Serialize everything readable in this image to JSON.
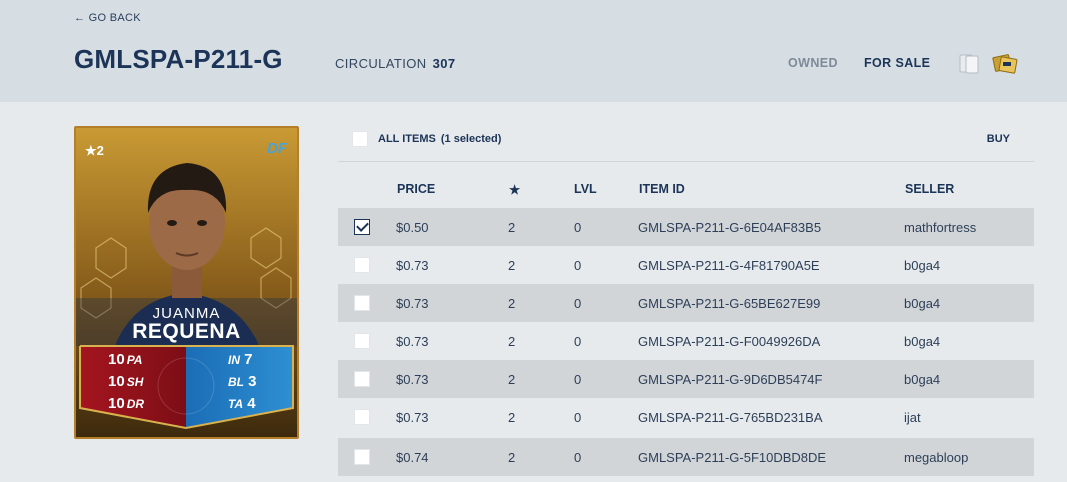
{
  "header": {
    "back_label": "← GO BACK",
    "title": "GMLSPA-P211-G",
    "circulation_label": "CIRCULATION",
    "circulation_value": "307",
    "tab_owned": "OWNED",
    "tab_for_sale": "FOR SALE",
    "icons": [
      "cards-icon",
      "packs-icon"
    ]
  },
  "card": {
    "rating": "★2",
    "position": "DF",
    "first_name": "JUANMA",
    "last_name": "REQUENA",
    "stats_left": [
      {
        "value": "10",
        "label": "PA"
      },
      {
        "value": "10",
        "label": "SH"
      },
      {
        "value": "10",
        "label": "DR"
      }
    ],
    "stats_right": [
      {
        "label": "IN",
        "value": "7"
      },
      {
        "label": "BL",
        "value": "3"
      },
      {
        "label": "TA",
        "value": "4"
      }
    ]
  },
  "table": {
    "all_items_label": "ALL ITEMS",
    "selected_label": "(1 selected)",
    "buy_label": "BUY",
    "columns": [
      "PRICE",
      "★",
      "LVL",
      "ITEM ID",
      "SELLER"
    ],
    "rows": [
      {
        "checked": true,
        "price": "$0.50",
        "stars": "2",
        "lvl": "0",
        "item_id": "GMLSPA-P211-G-6E04AF83B5",
        "seller": "mathfortress"
      },
      {
        "checked": false,
        "price": "$0.73",
        "stars": "2",
        "lvl": "0",
        "item_id": "GMLSPA-P211-G-4F81790A5E",
        "seller": "b0ga4"
      },
      {
        "checked": false,
        "price": "$0.73",
        "stars": "2",
        "lvl": "0",
        "item_id": "GMLSPA-P211-G-65BE627E99",
        "seller": "b0ga4"
      },
      {
        "checked": false,
        "price": "$0.73",
        "stars": "2",
        "lvl": "0",
        "item_id": "GMLSPA-P211-G-F0049926DA",
        "seller": "b0ga4"
      },
      {
        "checked": false,
        "price": "$0.73",
        "stars": "2",
        "lvl": "0",
        "item_id": "GMLSPA-P211-G-9D6DB5474F",
        "seller": "b0ga4"
      },
      {
        "checked": false,
        "price": "$0.73",
        "stars": "2",
        "lvl": "0",
        "item_id": "GMLSPA-P211-G-765BD231BA",
        "seller": "ijat"
      },
      {
        "checked": false,
        "price": "$0.74",
        "stars": "2",
        "lvl": "0",
        "item_id": "GMLSPA-P211-G-5F10DBD8DE",
        "seller": "megabloop"
      }
    ]
  }
}
